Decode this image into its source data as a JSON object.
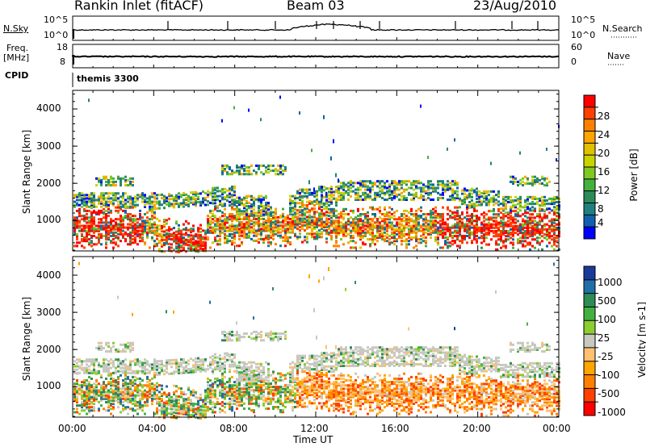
{
  "header": {
    "station": "Rankin Inlet (fitACF)",
    "beam": "Beam 03",
    "date": "23/Aug/2010"
  },
  "top_panels": {
    "nsky_label": "N.Sky",
    "nsky_ticks": [
      "10^5",
      "10^0"
    ],
    "nsearch_label": "N.Search",
    "nsearch_ticks": [
      "10^5",
      "10^0"
    ],
    "freq_label": "Freq.",
    "freq_unit": "[MHz]",
    "freq_ticks": [
      "18",
      "8"
    ],
    "nave_label": "Nave",
    "nave_ticks": [
      "60",
      "0"
    ],
    "cpid_label": "CPID",
    "cpid_value": "themis 3300"
  },
  "chart_data": [
    {
      "type": "heatmap",
      "name": "power",
      "ylabel": "Slant Range [km]",
      "xlabel": "",
      "x_ticks": [
        "00:00",
        "04:00",
        "08:00",
        "12:00",
        "16:00",
        "20:00",
        "00:00"
      ],
      "xlim_hours": [
        0,
        24
      ],
      "y_ticks": [
        1000,
        2000,
        3000,
        4000
      ],
      "ylim": [
        180,
        4500
      ],
      "colorbar": {
        "label": "Power [dB]",
        "ticks": [
          "28",
          "24",
          "20",
          "16",
          "12",
          "8",
          "4"
        ],
        "colors": [
          "#ff0000",
          "#ff4000",
          "#ff8000",
          "#ffa500",
          "#e0c000",
          "#c8d400",
          "#80c820",
          "#44b040",
          "#2e8b57",
          "#208080",
          "#1060b0",
          "#0000ff"
        ]
      }
    },
    {
      "type": "heatmap",
      "name": "velocity",
      "ylabel": "Slant Range [km]",
      "xlabel": "Time UT",
      "x_ticks": [
        "00:00",
        "04:00",
        "08:00",
        "12:00",
        "16:00",
        "20:00",
        "00:00"
      ],
      "xlim_hours": [
        0,
        24
      ],
      "y_ticks": [
        1000,
        2000,
        3000,
        4000
      ],
      "ylim": [
        180,
        4500
      ],
      "colorbar": {
        "label": "Velocity [m s-1]",
        "ticks": [
          "1000",
          "500",
          "100",
          "25",
          "-25",
          "-100",
          "-500",
          "-1000"
        ],
        "colors": [
          "#1a3a9a",
          "#1f6fa8",
          "#2e8b57",
          "#44b040",
          "#8ccd30",
          "#c8c8c0",
          "#ffc070",
          "#ffa500",
          "#ff8000",
          "#ff4000",
          "#ff0000"
        ]
      }
    }
  ],
  "colors": {
    "ground_scatter": "#c0c0b8",
    "frame": "#000000"
  }
}
